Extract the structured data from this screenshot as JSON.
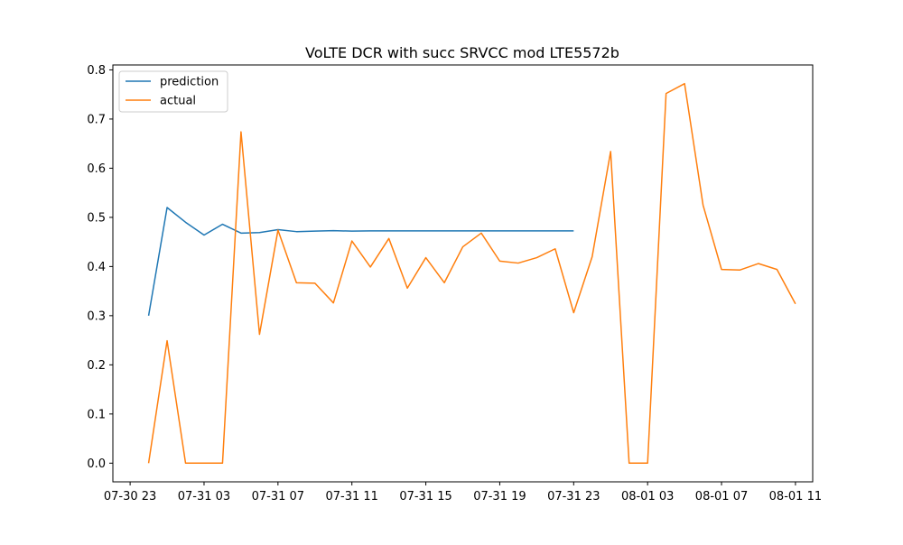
{
  "chart_data": {
    "type": "line",
    "title": "VoLTE DCR with succ SRVCC mod LTE5572b",
    "xlabel": "",
    "ylabel": "",
    "x_tick_labels": [
      "07-30 23",
      "07-31 03",
      "07-31 07",
      "07-31 11",
      "07-31 15",
      "07-31 19",
      "07-31 23",
      "08-01 03",
      "08-01 07",
      "08-01 11"
    ],
    "x_tick_positions": [
      "2019-07-30 23:00",
      "2019-07-31 03:00",
      "2019-07-31 07:00",
      "2019-07-31 11:00",
      "2019-07-31 15:00",
      "2019-07-31 19:00",
      "2019-07-31 23:00",
      "2019-08-01 03:00",
      "2019-08-01 07:00",
      "2019-08-01 11:00"
    ],
    "y_ticks": [
      "0.0",
      "0.1",
      "0.2",
      "0.3",
      "0.4",
      "0.5",
      "0.6",
      "0.7",
      "0.8"
    ],
    "ylim": [
      -0.038,
      0.81
    ],
    "xlim": [
      "2019-07-30 22:04",
      "2019-08-01 11:56"
    ],
    "grid": false,
    "legend_position": "upper-left",
    "series": [
      {
        "name": "prediction",
        "color": "#1f77b4",
        "x": [
          "2019-07-31 00:00",
          "2019-07-31 01:00",
          "2019-07-31 02:00",
          "2019-07-31 03:00",
          "2019-07-31 04:00",
          "2019-07-31 05:00",
          "2019-07-31 06:00",
          "2019-07-31 07:00",
          "2019-07-31 08:00",
          "2019-07-31 09:00",
          "2019-07-31 10:00",
          "2019-07-31 11:00",
          "2019-07-31 12:00",
          "2019-07-31 13:00",
          "2019-07-31 14:00",
          "2019-07-31 15:00",
          "2019-07-31 16:00",
          "2019-07-31 17:00",
          "2019-07-31 18:00",
          "2019-07-31 19:00",
          "2019-07-31 20:00",
          "2019-07-31 21:00",
          "2019-07-31 22:00",
          "2019-07-31 23:00"
        ],
        "values": [
          0.3,
          0.52,
          0.49,
          0.464,
          0.486,
          0.468,
          0.469,
          0.475,
          0.471,
          0.472,
          0.473,
          0.472,
          0.4725,
          0.4725,
          0.4725,
          0.4725,
          0.4725,
          0.4725,
          0.4725,
          0.4725,
          0.4725,
          0.4725,
          0.4725,
          0.4725
        ]
      },
      {
        "name": "actual",
        "color": "#ff7f0e",
        "x": [
          "2019-07-31 00:00",
          "2019-07-31 01:00",
          "2019-07-31 02:00",
          "2019-07-31 03:00",
          "2019-07-31 04:00",
          "2019-07-31 05:00",
          "2019-07-31 06:00",
          "2019-07-31 07:00",
          "2019-07-31 08:00",
          "2019-07-31 09:00",
          "2019-07-31 10:00",
          "2019-07-31 11:00",
          "2019-07-31 12:00",
          "2019-07-31 13:00",
          "2019-07-31 14:00",
          "2019-07-31 15:00",
          "2019-07-31 16:00",
          "2019-07-31 17:00",
          "2019-07-31 18:00",
          "2019-07-31 19:00",
          "2019-07-31 20:00",
          "2019-07-31 21:00",
          "2019-07-31 22:00",
          "2019-07-31 23:00",
          "2019-08-01 00:00",
          "2019-08-01 01:00",
          "2019-08-01 02:00",
          "2019-08-01 03:00",
          "2019-08-01 04:00",
          "2019-08-01 05:00",
          "2019-08-01 06:00",
          "2019-08-01 07:00",
          "2019-08-01 08:00",
          "2019-08-01 09:00",
          "2019-08-01 10:00",
          "2019-08-01 11:00"
        ],
        "values": [
          0.0,
          0.249,
          0.0,
          0.0,
          0.0,
          0.674,
          0.262,
          0.474,
          0.367,
          0.366,
          0.326,
          0.452,
          0.399,
          0.457,
          0.356,
          0.418,
          0.367,
          0.44,
          0.468,
          0.411,
          0.407,
          0.418,
          0.436,
          0.306,
          0.42,
          0.634,
          0.0,
          0.0,
          0.752,
          0.772,
          0.525,
          0.394,
          0.393,
          0.406,
          0.394,
          0.324
        ]
      }
    ]
  }
}
